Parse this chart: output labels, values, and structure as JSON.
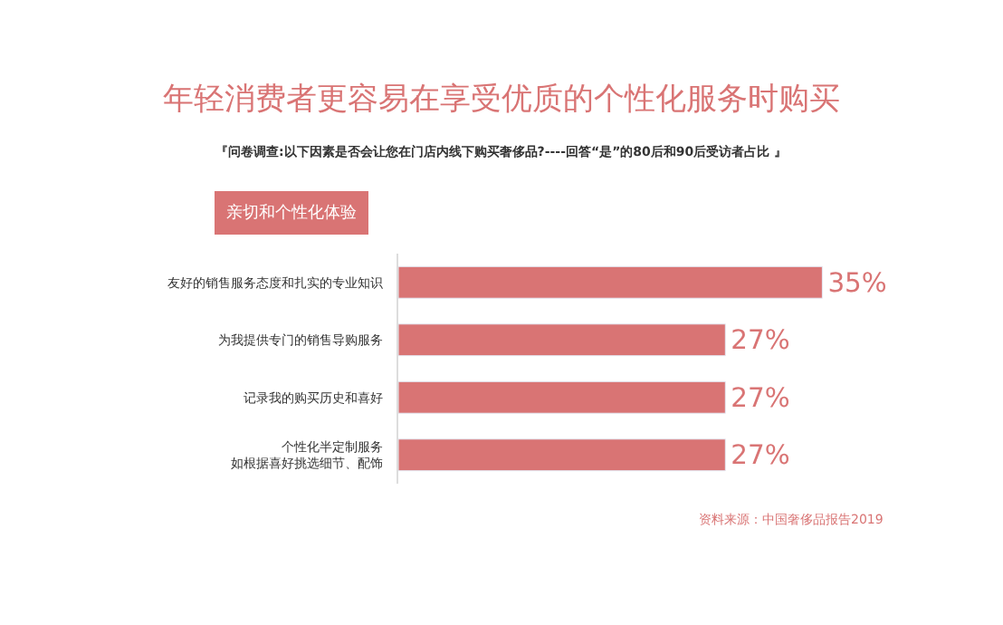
{
  "chart_data": {
    "type": "bar",
    "orientation": "horizontal",
    "title": "年轻消费者更容易在享受优质的个性化服务时购买",
    "subtitle": "『问卷调查:以下因素是否会让您在门店内线下购买奢侈品?----回答“是”的80后和90后受访者占比 』",
    "categories": [
      "友好的销售服务态度和扎实的专业知识",
      "为我提供专门的销售导购服务",
      "记录我的购买历史和喜好",
      "个性化半定制服务如根据喜好挑选细节、配饰"
    ],
    "values": [
      35,
      27,
      27,
      27
    ],
    "value_labels": [
      "35%",
      "27%",
      "27%",
      "27%"
    ],
    "color": "#d97474",
    "annotations": [
      "亲切和个性化体验",
      "资料来源：中国奢侈品报告2019"
    ],
    "legend": false
  }
}
